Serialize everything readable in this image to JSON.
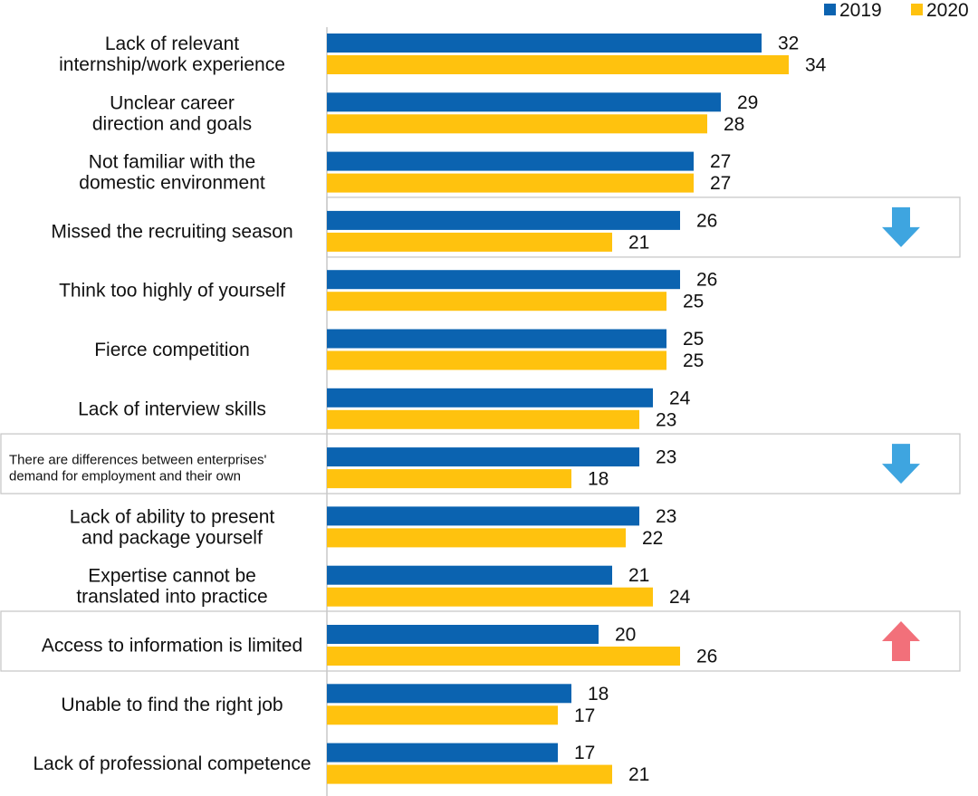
{
  "chart_data": {
    "type": "bar",
    "orientation": "horizontal",
    "title": "",
    "xlabel": "",
    "ylabel": "",
    "xlim": [
      0,
      34
    ],
    "grid": false,
    "legend_position": "top-right",
    "categories": [
      "Lack of relevant internship/work experience",
      "Unclear career direction and goals",
      "Not familiar with the domestic environment",
      "Missed the recruiting season",
      "Think too highly of yourself",
      "Fierce competition",
      "Lack of interview skills",
      "There are differences between enterprises' demand for employment and their own",
      "Lack of ability to present and package yourself",
      "Expertise cannot be translated into practice",
      "Access to information is limited",
      "Unable to find the right job",
      "Lack of professional competence"
    ],
    "label_lines": [
      [
        "Lack of relevant",
        "internship/work experience"
      ],
      [
        "Unclear career",
        "direction and goals"
      ],
      [
        "Not familiar with the",
        "domestic environment"
      ],
      [
        "Missed the recruiting season"
      ],
      [
        "Think too highly of yourself"
      ],
      [
        "Fierce competition"
      ],
      [
        "Lack of interview skills"
      ],
      [
        "There are differences between enterprises'",
        "demand for employment and their own"
      ],
      [
        "Lack of ability to present",
        "and package yourself"
      ],
      [
        "Expertise cannot be",
        "translated into practice"
      ],
      [
        "Access to information is limited"
      ],
      [
        "Unable to find the right job"
      ],
      [
        "Lack of professional competence"
      ]
    ],
    "series": [
      {
        "name": "2019",
        "color": "#0b63b0",
        "values": [
          32,
          29,
          27,
          26,
          26,
          25,
          24,
          23,
          23,
          21,
          20,
          18,
          17
        ]
      },
      {
        "name": "2020",
        "color": "#ffc20e",
        "values": [
          34,
          28,
          27,
          21,
          25,
          25,
          23,
          18,
          22,
          24,
          26,
          17,
          21
        ]
      }
    ],
    "annotations": [
      {
        "category_index": 3,
        "icon": "down-arrow-icon",
        "color": "#3ea5e0"
      },
      {
        "category_index": 7,
        "icon": "down-arrow-icon",
        "color": "#3ea5e0"
      },
      {
        "category_index": 10,
        "icon": "up-arrow-icon",
        "color": "#f2707a"
      }
    ]
  }
}
